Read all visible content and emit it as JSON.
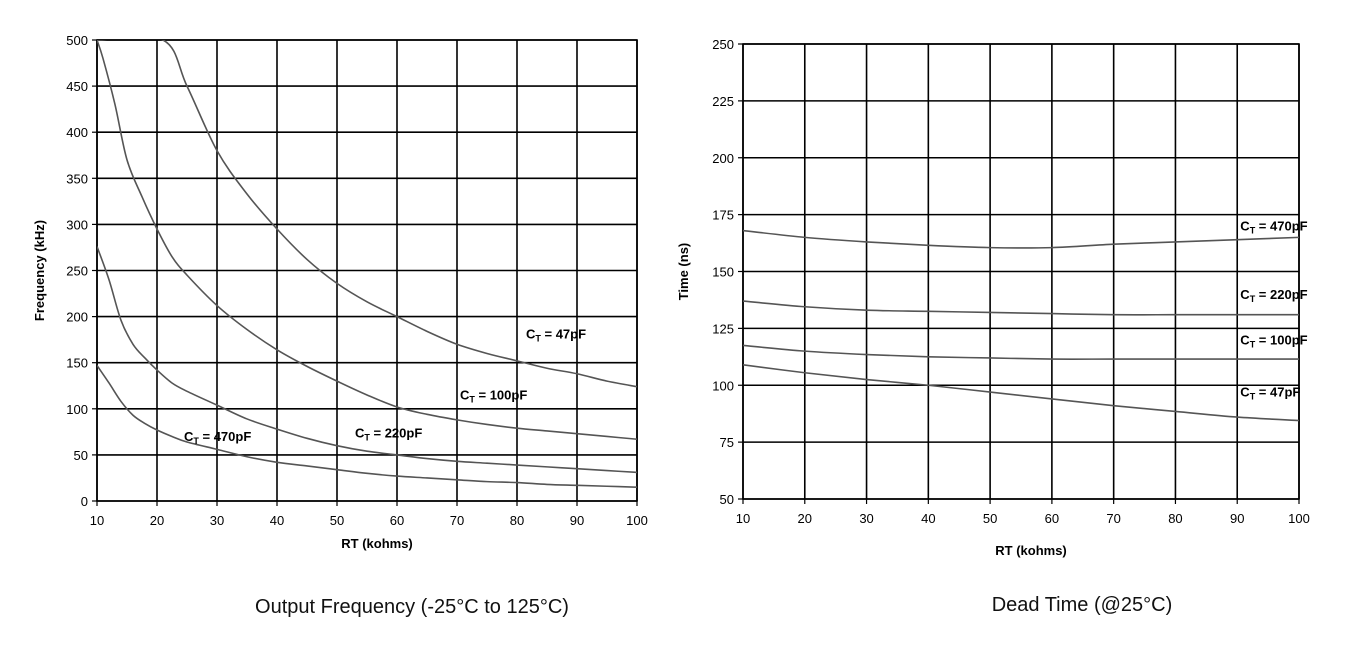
{
  "chart_data": [
    {
      "type": "line",
      "title": "",
      "caption": "Output Frequency  (-25°C to 125°C)",
      "xlabel": "RT (kohms)",
      "ylabel": "Frequency (kHz)",
      "xlim": [
        10,
        100
      ],
      "ylim": [
        0,
        500
      ],
      "x_ticks": [
        10,
        20,
        30,
        40,
        50,
        60,
        70,
        80,
        90,
        100
      ],
      "y_ticks": [
        0,
        50,
        100,
        150,
        200,
        250,
        300,
        350,
        400,
        450,
        500
      ],
      "grid": true,
      "curve_color": "#555555",
      "series": [
        {
          "name": "CT = 47pF",
          "label_main": "C",
          "label_sub": "T",
          "label_rest": " = 47pF",
          "label_at": [
            81.5,
            176
          ],
          "x": [
            10,
            21,
            25,
            30,
            35,
            40,
            45,
            50,
            55,
            60,
            65,
            70,
            75,
            80,
            85,
            90,
            95,
            100
          ],
          "values": [
            500,
            500,
            450,
            380,
            333,
            295,
            262,
            236,
            216,
            200,
            184,
            170,
            160,
            152,
            144,
            138,
            130,
            124
          ]
        },
        {
          "name": "CT = 100pF",
          "label_main": "C",
          "label_sub": "T",
          "label_rest": " = 100pF",
          "label_at": [
            70.5,
            110
          ],
          "x": [
            10,
            11,
            13,
            15,
            17.5,
            20,
            22.5,
            25,
            30,
            35,
            40,
            45,
            50,
            55,
            60,
            65,
            70,
            75,
            80,
            85,
            90,
            95,
            100
          ],
          "values": [
            500,
            480,
            430,
            370,
            330,
            295,
            265,
            245,
            212,
            186,
            164,
            146,
            130,
            115,
            102,
            94,
            88,
            83,
            79,
            76,
            73,
            70,
            67
          ]
        },
        {
          "name": "CT = 220pF",
          "label_main": "C",
          "label_sub": "T",
          "label_rest": " = 220pF",
          "label_at": [
            53,
            69
          ],
          "x": [
            10,
            12,
            14,
            16,
            18,
            20,
            22.5,
            25,
            30,
            35,
            40,
            45,
            50,
            55,
            60,
            65,
            70,
            75,
            80,
            85,
            90,
            95,
            100
          ],
          "values": [
            276,
            240,
            196,
            170,
            155,
            142,
            128,
            119,
            104,
            89,
            78,
            68,
            60,
            54,
            50,
            46,
            43,
            41,
            39,
            37,
            35,
            33,
            31
          ]
        },
        {
          "name": "CT = 470pF",
          "label_main": "C",
          "label_sub": "T",
          "label_rest": " = 470pF",
          "label_at": [
            24.5,
            65
          ],
          "x": [
            10,
            12,
            14,
            16,
            18,
            20,
            22.5,
            25,
            30,
            35,
            40,
            45,
            50,
            55,
            60,
            65,
            70,
            75,
            80,
            85,
            90,
            95,
            100
          ],
          "values": [
            147,
            128,
            108,
            93,
            84,
            77,
            70,
            64,
            56,
            48,
            42,
            38,
            34,
            30,
            27,
            25,
            23,
            21,
            20,
            18,
            17,
            16,
            15
          ]
        }
      ]
    },
    {
      "type": "line",
      "title": "",
      "caption": "Dead Time (@25°C)",
      "xlabel": "RT (kohms)",
      "ylabel": "Time (ns)",
      "xlim": [
        10,
        100
      ],
      "ylim": [
        50,
        250
      ],
      "x_ticks": [
        10,
        20,
        30,
        40,
        50,
        60,
        70,
        80,
        90,
        100
      ],
      "y_ticks": [
        50,
        75,
        100,
        125,
        150,
        175,
        200,
        225,
        250
      ],
      "grid": true,
      "curve_color": "#555555",
      "series": [
        {
          "name": "CT = 470pF",
          "label_main": "C",
          "label_sub": "T",
          "label_rest": " = 470pF",
          "label_at": [
            90.5,
            168
          ],
          "x": [
            10,
            20,
            30,
            40,
            50,
            60,
            70,
            80,
            90,
            100
          ],
          "values": [
            168,
            165,
            163,
            161.5,
            160.5,
            160.5,
            162,
            163,
            164,
            165
          ]
        },
        {
          "name": "CT = 220pF",
          "label_main": "C",
          "label_sub": "T",
          "label_rest": " = 220pF",
          "label_at": [
            90.5,
            138
          ],
          "x": [
            10,
            20,
            30,
            40,
            50,
            60,
            70,
            80,
            90,
            100
          ],
          "values": [
            137,
            134.5,
            133,
            132.5,
            132,
            131.5,
            131,
            131,
            131,
            131
          ]
        },
        {
          "name": "CT = 100pF",
          "label_main": "C",
          "label_sub": "T",
          "label_rest": " = 100pF",
          "label_at": [
            90.5,
            118
          ],
          "x": [
            10,
            20,
            30,
            40,
            50,
            60,
            70,
            80,
            90,
            100
          ],
          "values": [
            117.5,
            115,
            113.5,
            112.5,
            112,
            111.5,
            111.5,
            111.5,
            111.5,
            111.5
          ]
        },
        {
          "name": "CT = 47pF",
          "label_main": "C",
          "label_sub": "T",
          "label_rest": " = 47pF",
          "label_at": [
            90.5,
            95
          ],
          "x": [
            10,
            20,
            30,
            40,
            50,
            60,
            70,
            80,
            90,
            100
          ],
          "values": [
            109,
            105.5,
            102.5,
            100,
            97,
            94,
            91,
            88.5,
            86,
            84.5
          ]
        }
      ]
    }
  ]
}
